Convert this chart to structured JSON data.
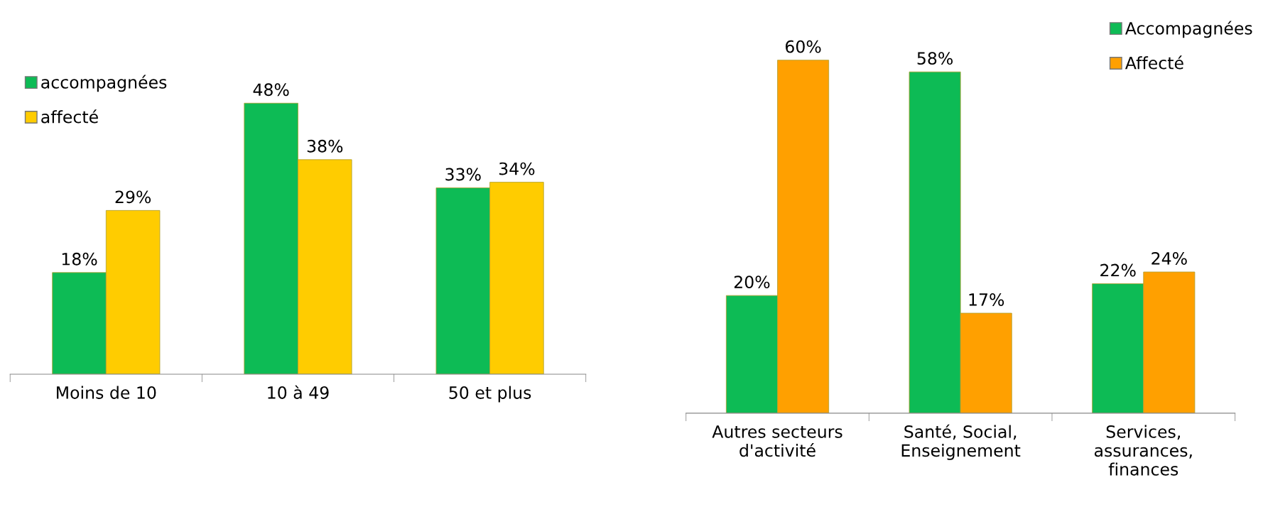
{
  "chart_data": [
    {
      "type": "bar",
      "categories": [
        "Moins de 10",
        "10 à 49",
        "50 et plus"
      ],
      "legend": "top left",
      "series": [
        {
          "name": "accompagnées",
          "color": "#0dbb55",
          "values": [
            18,
            48,
            33
          ],
          "value_labels": [
            "18%",
            "48%",
            "33%"
          ]
        },
        {
          "name": "affecté",
          "color": "#ffcc00",
          "values": [
            29,
            38,
            34
          ],
          "value_labels": [
            "29%",
            "38%",
            "34%"
          ]
        }
      ]
    },
    {
      "type": "bar",
      "categories": [
        "Autres secteurs\nd'activité",
        "Santé, Social,\nEnseignement",
        "Services,\nassurances,\nfinances"
      ],
      "legend": "top right",
      "series": [
        {
          "name": "Accompagnées",
          "color": "#0dbb55",
          "values": [
            20,
            58,
            22
          ],
          "value_labels": [
            "20%",
            "58%",
            "22%"
          ]
        },
        {
          "name": "Affecté",
          "color": "#ffa000",
          "values": [
            60,
            17,
            24
          ],
          "value_labels": [
            "60%",
            "17%",
            "24%"
          ]
        }
      ]
    }
  ]
}
